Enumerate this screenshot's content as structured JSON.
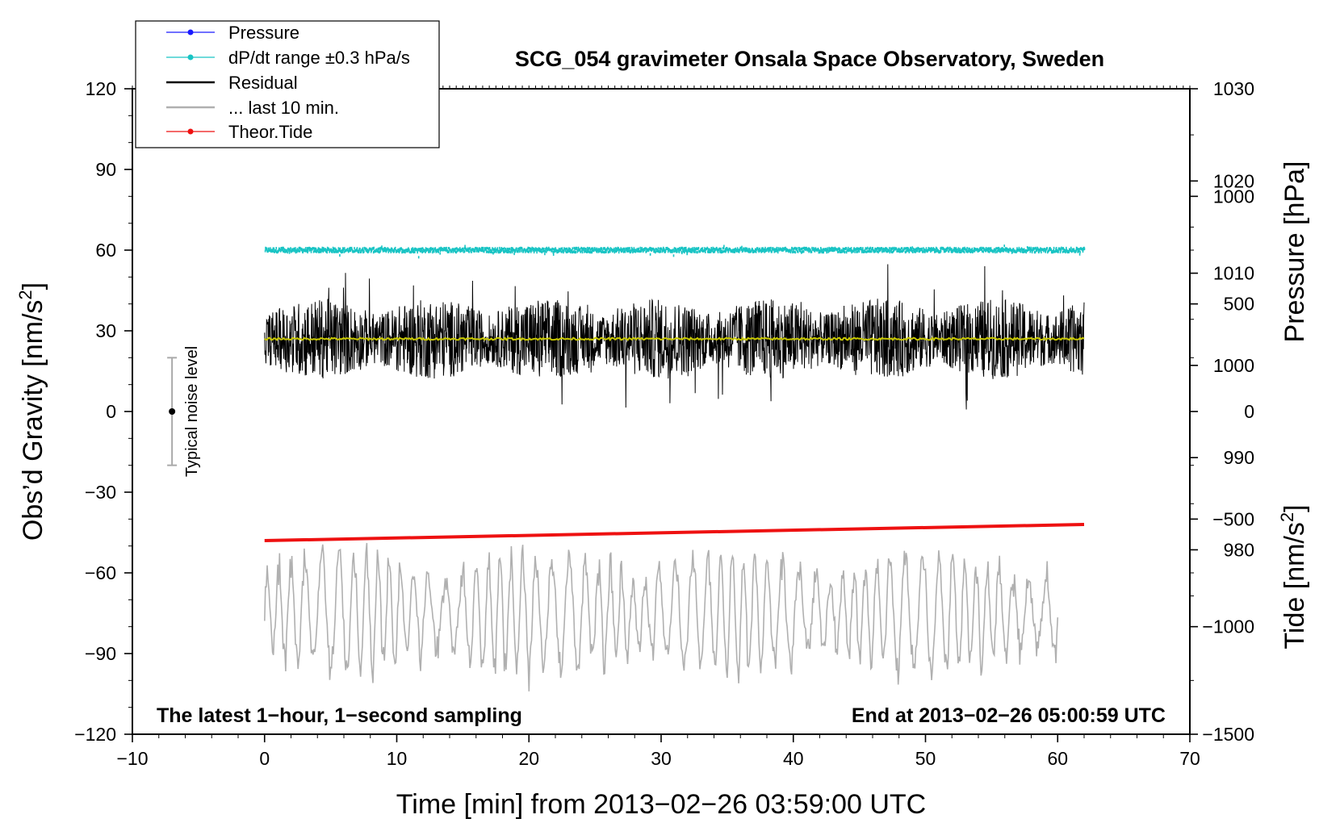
{
  "chart_data": {
    "type": "line",
    "title": "SCG_054 gravimeter Onsala Space Observatory, Sweden",
    "xlabel": "Time [min] from 2013−02−26 03:59:00 UTC",
    "ylabel": "Obs’d Gravity [nm/s",
    "ylabel_sup": "2",
    "ylabel_close": "]",
    "y2label": "Pressure [hPa]",
    "y3label": "Tide [nm/s",
    "y3label_sup": "2",
    "y3label_close": "]",
    "xlim": [
      -10,
      70
    ],
    "ylim": [
      -120,
      120
    ],
    "xticks": [
      -10,
      0,
      10,
      20,
      30,
      40,
      50,
      60,
      70
    ],
    "xtick_labels": [
      "−10",
      "0",
      "10",
      "20",
      "30",
      "40",
      "50",
      "60",
      "70"
    ],
    "yticks": [
      120,
      90,
      60,
      30,
      0,
      -30,
      -60,
      -90,
      -120
    ],
    "ytick_labels": [
      "120",
      "90",
      "60",
      "30",
      "0",
      "−30",
      "−60",
      "−90",
      "−120"
    ],
    "pressure_axis": {
      "ticks": [
        1030,
        1020,
        1010,
        1000,
        990,
        980
      ],
      "tick_labels": [
        "1030",
        "1020",
        "1010",
        "1000",
        "990",
        "980"
      ],
      "range": [
        960,
        1030
      ]
    },
    "tide_axis": {
      "ticks": [
        1000,
        500,
        0,
        -500,
        -1000,
        -1500
      ],
      "tick_labels": [
        "1000",
        "500",
        "0",
        "−500",
        "−1000",
        "−1500"
      ],
      "range": [
        -1500,
        1500
      ]
    },
    "legend": {
      "placement": "top-left",
      "entries": [
        {
          "label": "Pressure",
          "color": "#1a1aff",
          "marker": true
        },
        {
          "label": "dP/dt range ±0.3 hPa/s",
          "color": "#19c4c4",
          "marker": true
        },
        {
          "label": "Residual",
          "color": "#000000",
          "marker": false
        },
        {
          "label": "... last 10 min.",
          "color": "#b0b0b0",
          "marker": false
        },
        {
          "label": "Theor.Tide",
          "color": "#ee1111",
          "marker": true
        }
      ]
    },
    "annotations": {
      "left_bottom": "The latest 1−hour, 1−second sampling",
      "right_bottom": "End at 2013−02−26 05:00:59 UTC",
      "noise_label": "Typical noise level"
    },
    "noise_bar": {
      "x": -7,
      "y": 0,
      "low": -20,
      "high": 20
    },
    "series": [
      {
        "name": "dP/dt range",
        "color": "#19c4c4",
        "x_range": [
          0,
          62
        ],
        "y_level": 60,
        "spread": 0.8
      },
      {
        "name": "Residual",
        "color": "#000000",
        "x_range": [
          0,
          62
        ],
        "mean": 27,
        "amplitude": 15,
        "min": -8,
        "max": 61
      },
      {
        "name": "Residual smoothed",
        "color": "#c8c800",
        "x_range": [
          0,
          62
        ],
        "mean": 27,
        "amplitude": 0.8
      },
      {
        "name": "Theor.Tide",
        "color": "#ee1111",
        "x": [
          0,
          62
        ],
        "y": [
          -48,
          -42
        ]
      },
      {
        "name": "last 10 min.",
        "color": "#b0b0b0",
        "x_range": [
          0,
          60
        ],
        "mean": -75,
        "amplitude": 22,
        "min": -108,
        "max": -40
      }
    ],
    "colors": {
      "pressure": "#1a1aff",
      "dpdt": "#19c4c4",
      "residual": "#000000",
      "smooth": "#c8c800",
      "last10": "#b0b0b0",
      "tide": "#ee1111"
    }
  }
}
